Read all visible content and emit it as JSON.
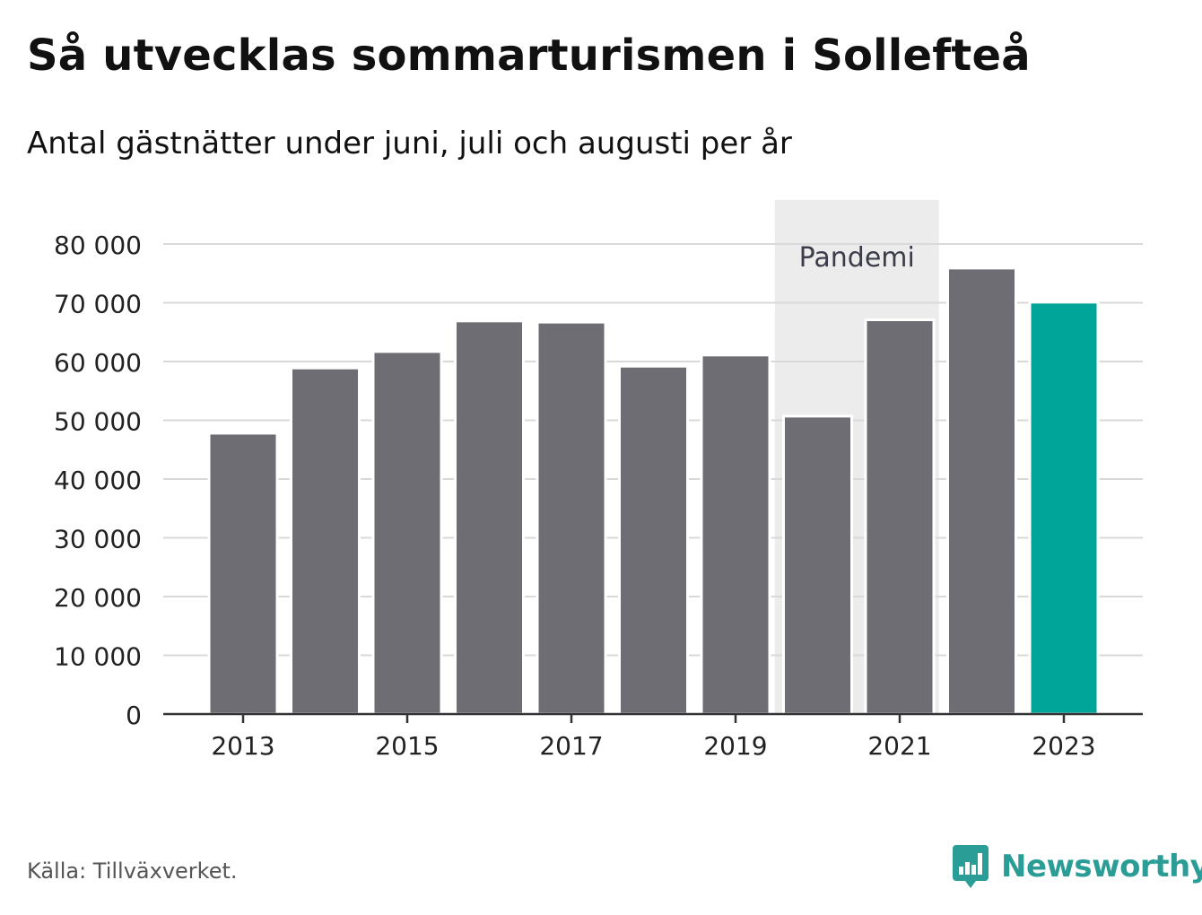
{
  "title": "Så utvecklas sommarturismen i Sollefteå",
  "subtitle": "Antal gästnätter under juni, juli och augusti per år",
  "source": "Källa: Tillväxverket.",
  "brand": {
    "name": "Newsworthy",
    "icon": "newsworthy-logo-icon",
    "color": "#2a9d96"
  },
  "colors": {
    "bar": "#6e6d74",
    "highlight": "#00a59a",
    "band": "#ececec",
    "grid": "#d9d9d9",
    "axis": "#333333"
  },
  "chart_data": {
    "type": "bar",
    "categories": [
      "2013",
      "2014",
      "2015",
      "2016",
      "2017",
      "2018",
      "2019",
      "2020",
      "2021",
      "2022",
      "2023"
    ],
    "values": [
      47800,
      58900,
      61700,
      66900,
      66700,
      59200,
      61100,
      50700,
      67100,
      75900,
      70100
    ],
    "highlight": [
      "2023"
    ],
    "xticks": [
      "2013",
      "2015",
      "2017",
      "2019",
      "2021",
      "2023"
    ],
    "yticks": [
      0,
      10000,
      20000,
      30000,
      40000,
      50000,
      60000,
      70000,
      80000
    ],
    "ytick_labels": [
      "0",
      "10 000",
      "20 000",
      "30 000",
      "40 000",
      "50 000",
      "60 000",
      "70 000",
      "80 000"
    ],
    "ylim": [
      0,
      80000
    ],
    "grid": true,
    "annotation": {
      "label": "Pandemi",
      "from": "2020",
      "to": "2021"
    },
    "xlabel": "",
    "ylabel": ""
  }
}
